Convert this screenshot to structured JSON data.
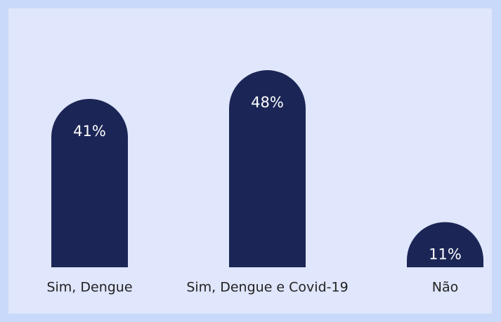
{
  "chart_data": {
    "type": "bar",
    "categories": [
      "Sim, Dengue",
      "Sim, Dengue e Covid-19",
      "Não"
    ],
    "values": [
      41,
      48,
      11
    ],
    "value_labels": [
      "41%",
      "48%",
      "11%"
    ],
    "color": "#1b2656"
  }
}
